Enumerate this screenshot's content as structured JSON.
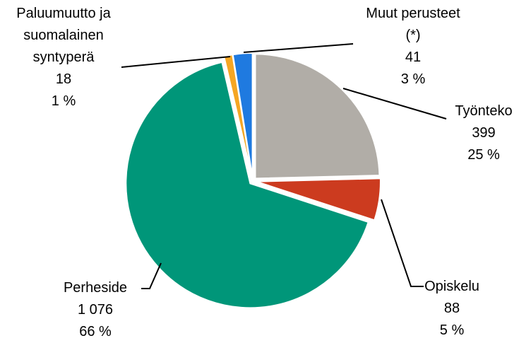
{
  "chart_data": {
    "type": "pie",
    "categories": [
      "Työnteko",
      "Opiskelu",
      "Perheside",
      "Paluumuutto ja suomalainen syntyperä",
      "Muut perusteet (*)"
    ],
    "values": [
      399,
      88,
      1076,
      18,
      41
    ],
    "value_labels": [
      "399",
      "88",
      "1 076",
      "18",
      "41"
    ],
    "percents": [
      25,
      5,
      66,
      1,
      3
    ],
    "percent_labels": [
      "25 %",
      "5 %",
      "66 %",
      "1 %",
      "3 %"
    ],
    "colors": [
      "#b1ada7",
      "#cc3b1f",
      "#009679",
      "#f5a623",
      "#1f7ae0"
    ]
  }
}
